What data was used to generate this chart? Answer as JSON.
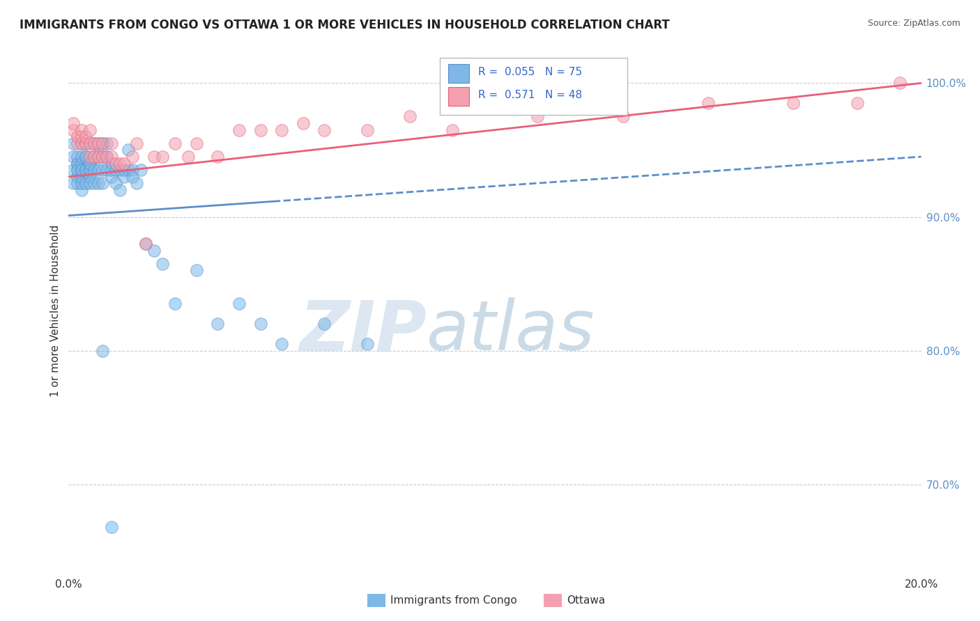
{
  "title": "IMMIGRANTS FROM CONGO VS OTTAWA 1 OR MORE VEHICLES IN HOUSEHOLD CORRELATION CHART",
  "source": "Source: ZipAtlas.com",
  "ylabel": "1 or more Vehicles in Household",
  "x_min": 0.0,
  "x_max": 0.2,
  "y_min": 0.635,
  "y_max": 1.025,
  "y_ticks": [
    0.7,
    0.8,
    0.9,
    1.0
  ],
  "y_tick_labels": [
    "70.0%",
    "80.0%",
    "90.0%",
    "100.0%"
  ],
  "R_blue": 0.055,
  "N_blue": 75,
  "R_pink": 0.571,
  "N_pink": 48,
  "blue_color": "#7db8e8",
  "pink_color": "#f4a0b0",
  "blue_line_color": "#5b8fc9",
  "pink_line_color": "#e8607a",
  "watermark_zip": "ZIP",
  "watermark_atlas": "atlas",
  "watermark_color_zip": "#c8d8ea",
  "watermark_color_atlas": "#b0c8d8",
  "blue_x": [
    0.001,
    0.001,
    0.001,
    0.001,
    0.002,
    0.002,
    0.002,
    0.002,
    0.002,
    0.002,
    0.002,
    0.003,
    0.003,
    0.003,
    0.003,
    0.003,
    0.003,
    0.003,
    0.003,
    0.003,
    0.004,
    0.004,
    0.004,
    0.004,
    0.004,
    0.004,
    0.005,
    0.005,
    0.005,
    0.005,
    0.005,
    0.005,
    0.006,
    0.006,
    0.006,
    0.006,
    0.007,
    0.007,
    0.007,
    0.007,
    0.008,
    0.008,
    0.008,
    0.008,
    0.009,
    0.009,
    0.009,
    0.01,
    0.01,
    0.01,
    0.011,
    0.011,
    0.012,
    0.012,
    0.013,
    0.013,
    0.014,
    0.014,
    0.015,
    0.015,
    0.016,
    0.017,
    0.018,
    0.02,
    0.022,
    0.025,
    0.03,
    0.035,
    0.04,
    0.045,
    0.05,
    0.06,
    0.07,
    0.008,
    0.01
  ],
  "blue_y": [
    0.935,
    0.945,
    0.955,
    0.925,
    0.94,
    0.945,
    0.93,
    0.925,
    0.935,
    0.94,
    0.935,
    0.93,
    0.935,
    0.94,
    0.92,
    0.925,
    0.935,
    0.945,
    0.955,
    0.935,
    0.925,
    0.935,
    0.945,
    0.935,
    0.945,
    0.955,
    0.93,
    0.94,
    0.935,
    0.925,
    0.935,
    0.94,
    0.925,
    0.935,
    0.945,
    0.955,
    0.935,
    0.945,
    0.955,
    0.925,
    0.935,
    0.945,
    0.955,
    0.925,
    0.935,
    0.945,
    0.955,
    0.93,
    0.94,
    0.935,
    0.925,
    0.935,
    0.92,
    0.935,
    0.93,
    0.935,
    0.95,
    0.935,
    0.935,
    0.93,
    0.925,
    0.935,
    0.88,
    0.875,
    0.865,
    0.835,
    0.86,
    0.82,
    0.835,
    0.82,
    0.805,
    0.82,
    0.805,
    0.8,
    0.668
  ],
  "pink_x": [
    0.001,
    0.001,
    0.002,
    0.002,
    0.003,
    0.003,
    0.003,
    0.004,
    0.004,
    0.005,
    0.005,
    0.005,
    0.006,
    0.006,
    0.007,
    0.007,
    0.008,
    0.008,
    0.009,
    0.01,
    0.01,
    0.011,
    0.012,
    0.013,
    0.015,
    0.016,
    0.018,
    0.02,
    0.022,
    0.025,
    0.028,
    0.03,
    0.035,
    0.04,
    0.045,
    0.05,
    0.055,
    0.06,
    0.07,
    0.08,
    0.09,
    0.1,
    0.11,
    0.13,
    0.15,
    0.17,
    0.185,
    0.195
  ],
  "pink_y": [
    0.965,
    0.97,
    0.955,
    0.96,
    0.955,
    0.96,
    0.965,
    0.955,
    0.96,
    0.945,
    0.955,
    0.965,
    0.945,
    0.955,
    0.945,
    0.955,
    0.945,
    0.955,
    0.945,
    0.945,
    0.955,
    0.94,
    0.94,
    0.94,
    0.945,
    0.955,
    0.88,
    0.945,
    0.945,
    0.955,
    0.945,
    0.955,
    0.945,
    0.965,
    0.965,
    0.965,
    0.97,
    0.965,
    0.965,
    0.975,
    0.965,
    0.985,
    0.975,
    0.975,
    0.985,
    0.985,
    0.985,
    1.0
  ]
}
